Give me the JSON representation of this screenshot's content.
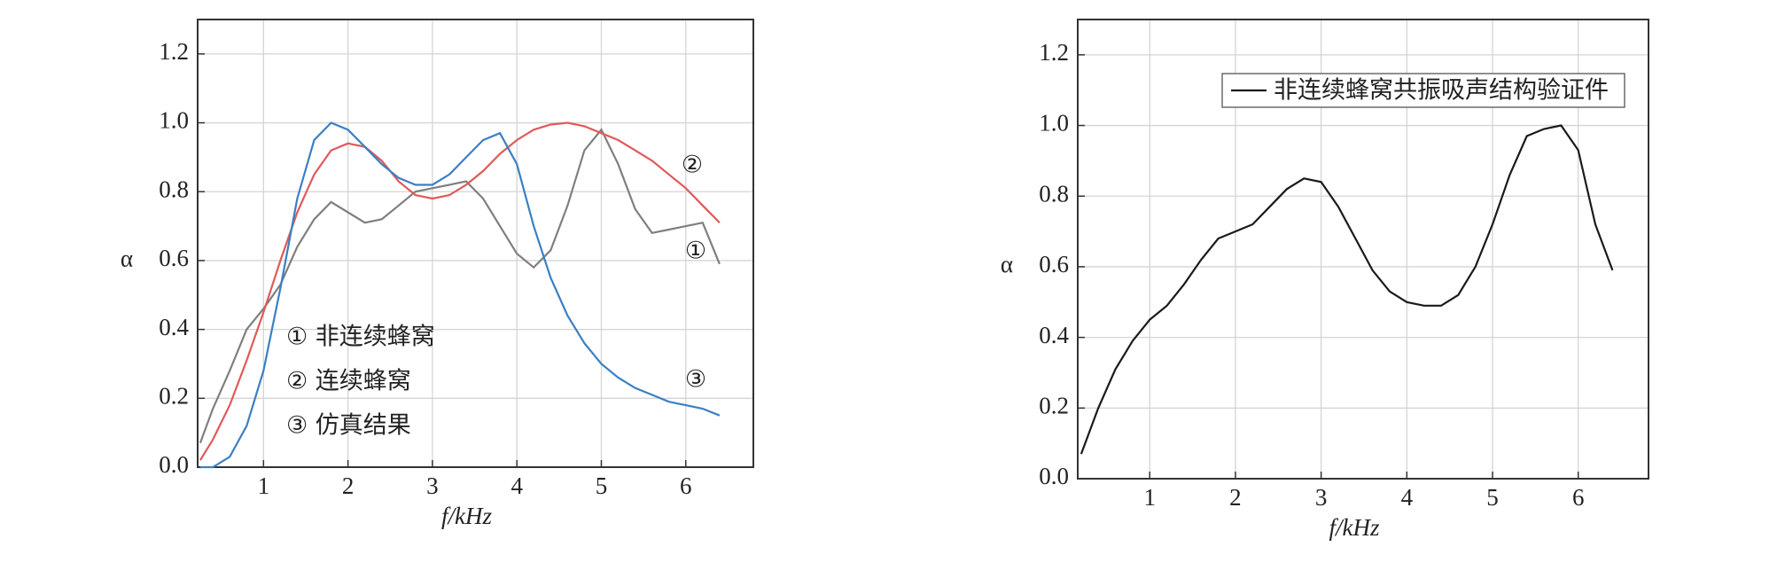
{
  "chart_data": [
    {
      "type": "line",
      "xlabel": "f/kHz",
      "ylabel": "α",
      "xlim": [
        0.22,
        6.8
      ],
      "ylim": [
        0,
        1.3
      ],
      "xticks": [
        1,
        2,
        3,
        4,
        5,
        6
      ],
      "yticks": [
        {
          "value": 0,
          "label": "0.0"
        },
        0.2,
        0.4,
        0.6,
        0.8,
        {
          "value": 1,
          "label": "1.0"
        },
        1.2
      ],
      "grid": true,
      "legend": "text",
      "x": [
        0.25,
        0.4,
        0.6,
        0.8,
        1.0,
        1.2,
        1.4,
        1.6,
        1.8,
        2.0,
        2.2,
        2.4,
        2.6,
        2.8,
        3.0,
        3.2,
        3.4,
        3.6,
        3.8,
        4.0,
        4.2,
        4.4,
        4.6,
        4.8,
        5.0,
        5.2,
        5.4,
        5.6,
        5.8,
        6.0,
        6.2,
        6.4
      ],
      "series": [
        {
          "name": "① 非连续蜂窝",
          "color": "#7f7f7f",
          "values": [
            0.07,
            0.17,
            0.28,
            0.4,
            0.46,
            0.53,
            0.64,
            0.72,
            0.77,
            0.74,
            0.71,
            0.72,
            0.76,
            0.8,
            0.81,
            0.82,
            0.83,
            0.78,
            0.7,
            0.62,
            0.58,
            0.63,
            0.76,
            0.92,
            0.98,
            0.88,
            0.75,
            0.68,
            0.69,
            0.7,
            0.71,
            0.59
          ]
        },
        {
          "name": "② 连续蜂窝",
          "color": "#e05a5a",
          "values": [
            0.02,
            0.08,
            0.18,
            0.31,
            0.45,
            0.6,
            0.74,
            0.85,
            0.92,
            0.94,
            0.93,
            0.89,
            0.83,
            0.79,
            0.78,
            0.79,
            0.82,
            0.86,
            0.91,
            0.95,
            0.98,
            0.995,
            1.0,
            0.99,
            0.97,
            0.95,
            0.92,
            0.89,
            0.85,
            0.81,
            0.76,
            0.71
          ]
        },
        {
          "name": "③ 仿真结果",
          "color": "#3b7fc4",
          "values": [
            0.0,
            0.0,
            0.03,
            0.12,
            0.28,
            0.52,
            0.78,
            0.95,
            1.0,
            0.98,
            0.93,
            0.88,
            0.84,
            0.82,
            0.82,
            0.85,
            0.9,
            0.95,
            0.97,
            0.88,
            0.7,
            0.55,
            0.44,
            0.36,
            0.3,
            0.26,
            0.23,
            0.21,
            0.19,
            0.18,
            0.17,
            0.15
          ]
        }
      ],
      "annotations": [
        "②",
        "①",
        "③"
      ]
    },
    {
      "type": "line",
      "xlabel": "f/kHz",
      "ylabel": "α",
      "xlim": [
        0.16,
        6.82
      ],
      "ylim": [
        0,
        1.3
      ],
      "xticks": [
        1,
        2,
        3,
        4,
        5,
        6
      ],
      "yticks": [
        {
          "value": 0,
          "label": "0.0"
        },
        0.2,
        0.4,
        0.6,
        0.8,
        {
          "value": 1,
          "label": "1.0"
        },
        1.2
      ],
      "grid": true,
      "legend": "upper right",
      "x": [
        0.2,
        0.4,
        0.6,
        0.8,
        1.0,
        1.2,
        1.4,
        1.6,
        1.8,
        2.0,
        2.2,
        2.4,
        2.6,
        2.8,
        3.0,
        3.2,
        3.4,
        3.6,
        3.8,
        4.0,
        4.2,
        4.4,
        4.6,
        4.8,
        5.0,
        5.2,
        5.4,
        5.6,
        5.8,
        6.0,
        6.2,
        6.4
      ],
      "series": [
        {
          "name": "非连续蜂窝共振吸声结构验证件",
          "color": "#1a1a1a",
          "values": [
            0.07,
            0.2,
            0.31,
            0.39,
            0.45,
            0.49,
            0.55,
            0.62,
            0.68,
            0.7,
            0.72,
            0.77,
            0.82,
            0.85,
            0.84,
            0.77,
            0.68,
            0.59,
            0.53,
            0.5,
            0.49,
            0.49,
            0.52,
            0.6,
            0.72,
            0.86,
            0.97,
            0.99,
            1.0,
            0.93,
            0.72,
            0.59
          ]
        }
      ]
    }
  ]
}
